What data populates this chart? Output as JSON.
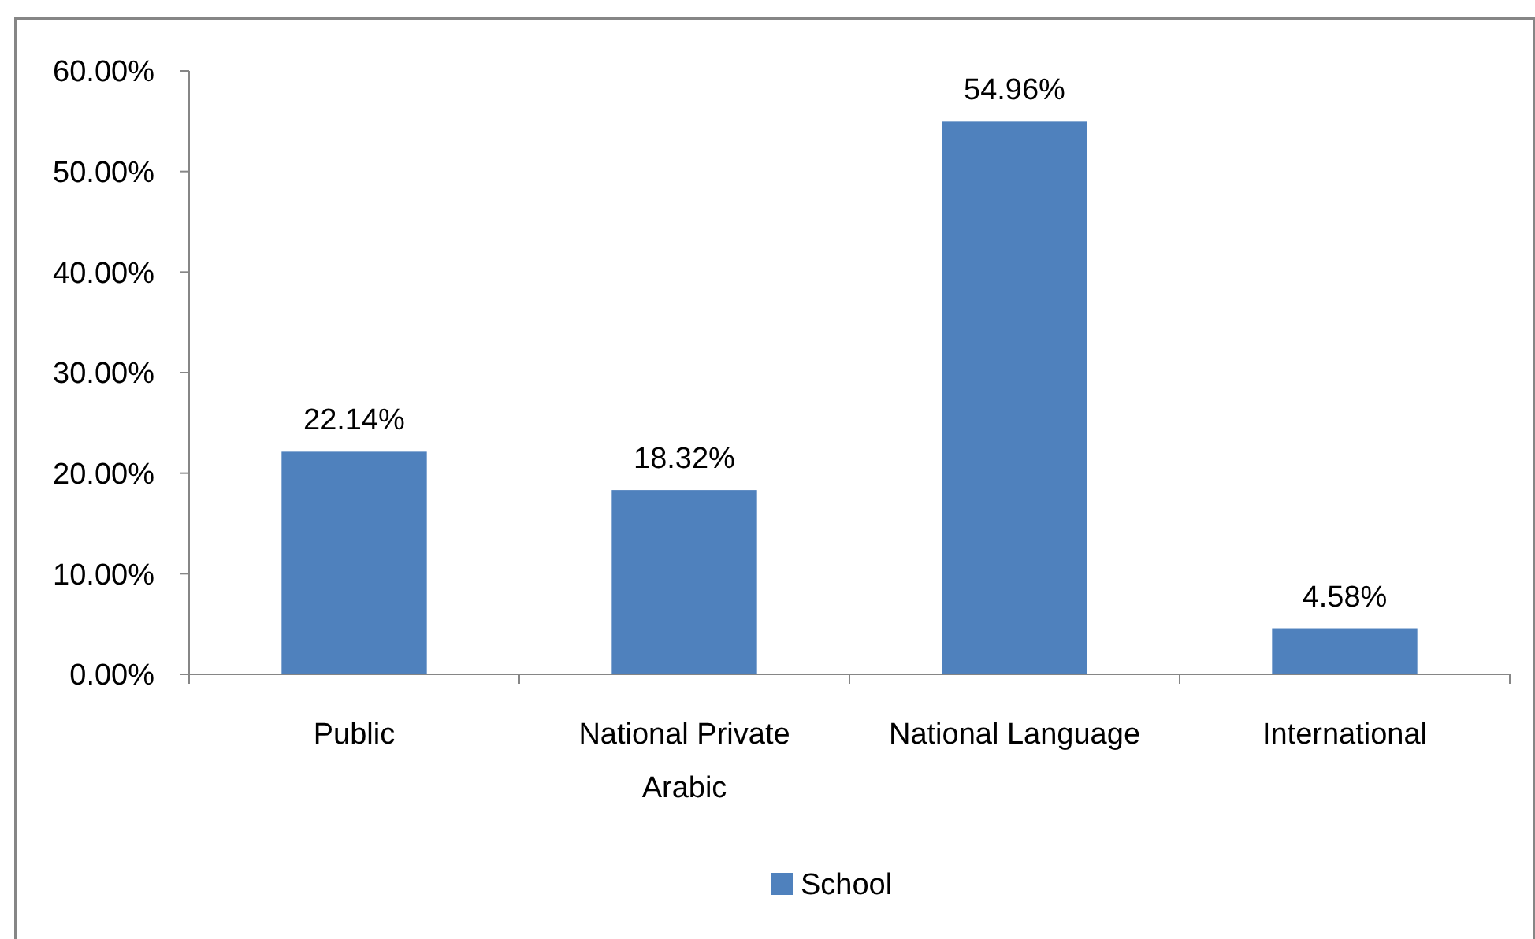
{
  "chart_data": {
    "type": "bar",
    "categories": [
      "Public",
      "National Private Arabic",
      "National Language",
      "International"
    ],
    "series": [
      {
        "name": "School",
        "color": "#4f81bd",
        "values": [
          22.14,
          18.32,
          54.96,
          4.58
        ],
        "value_labels": [
          "22.14%",
          "18.32%",
          "54.96%",
          "4.58%"
        ]
      }
    ],
    "ylim": [
      0,
      60
    ],
    "yticks": [
      {
        "value": 0,
        "label": "0.00%"
      },
      {
        "value": 10,
        "label": "10.00%"
      },
      {
        "value": 20,
        "label": "20.00%"
      },
      {
        "value": 30,
        "label": "30.00%"
      },
      {
        "value": 40,
        "label": "40.00%"
      },
      {
        "value": 50,
        "label": "50.00%"
      },
      {
        "value": 60,
        "label": "60.00%"
      }
    ],
    "grid": false,
    "legend": "bottom"
  }
}
